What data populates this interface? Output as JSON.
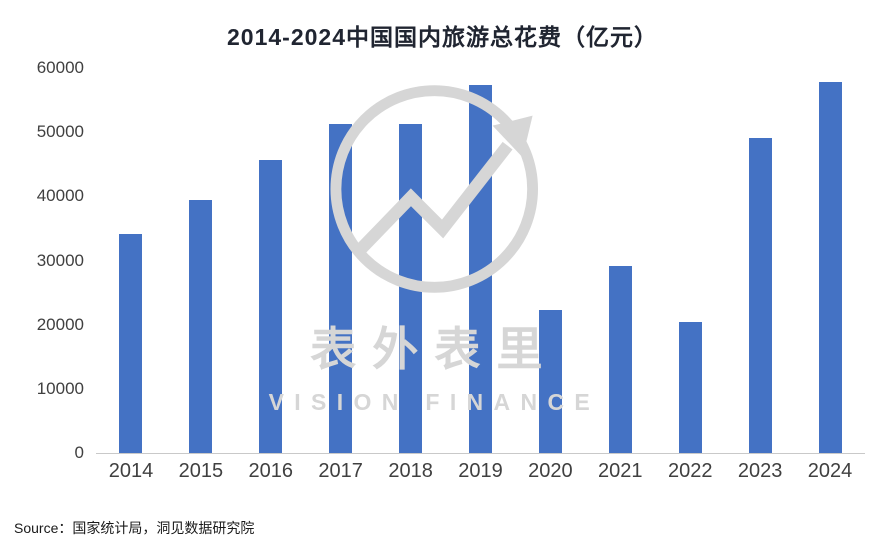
{
  "title": "2014-2024中国国内旅游总花费（亿元）",
  "source": "Source：国家统计局，洞见数据研究院",
  "watermark": {
    "name": "表外表里",
    "subtitle": "VISION FINANCE",
    "logo_icon": "circle-arrow-up-chart-icon"
  },
  "colors": {
    "bar": "#4472C4",
    "title_text": "#202531",
    "axis_text": "#404040",
    "watermark": "#d6d6d6"
  },
  "chart_data": {
    "type": "bar",
    "title": "2014-2024中国国内旅游总花费（亿元）",
    "categories": [
      "2014",
      "2015",
      "2016",
      "2017",
      "2018",
      "2019",
      "2020",
      "2021",
      "2022",
      "2023",
      "2024"
    ],
    "values": [
      34200,
      39400,
      45600,
      51200,
      51200,
      57300,
      22300,
      29200,
      20400,
      49100,
      57750
    ],
    "xlabel": "",
    "ylabel": "",
    "ylim": [
      0,
      60000
    ],
    "ytick_step": 10000,
    "grid": false,
    "legend": false,
    "source_note": "国家统计局，洞见数据研究院"
  }
}
